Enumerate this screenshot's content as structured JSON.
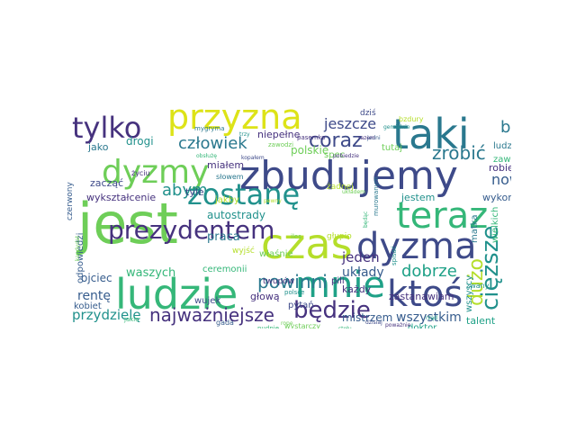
{
  "palette": {
    "dark_purple": "#46327e",
    "indigo": "#3e4a89",
    "blue": "#365c8d",
    "teal": "#2a788e",
    "teal_green": "#21918c",
    "sea_green": "#1fa187",
    "green": "#35b779",
    "light_green": "#6ece58",
    "yellow_green": "#b5de2b",
    "yellow": "#dde318"
  },
  "words": [
    {
      "text": "jest",
      "color": "#6ece58"
    },
    {
      "text": "zbudujemy",
      "color": "#3e4a89"
    },
    {
      "text": "przyzna",
      "color": "#dde318"
    },
    {
      "text": "taki",
      "color": "#2a788e"
    },
    {
      "text": "tylko",
      "color": "#46327e"
    },
    {
      "text": "dyzmy",
      "color": "#6ece58"
    },
    {
      "text": "ludzie",
      "color": "#35b779"
    },
    {
      "text": "teraz",
      "color": "#35b779"
    },
    {
      "text": "czas",
      "color": "#b5de2b"
    },
    {
      "text": "dyzma",
      "color": "#3e4a89"
    },
    {
      "text": "zostanę",
      "color": "#21918c"
    },
    {
      "text": "mnie",
      "color": "#1fa187"
    },
    {
      "text": "ktoś",
      "color": "#3e4a89"
    },
    {
      "text": "prezydentem",
      "color": "#46327e"
    },
    {
      "text": "będzie",
      "color": "#46327e"
    },
    {
      "text": "cięższe",
      "color": "#21918c"
    },
    {
      "text": "coraz",
      "color": "#3e4a89"
    },
    {
      "text": "zrobić",
      "color": "#2a788e"
    },
    {
      "text": "człowiek",
      "color": "#2a788e"
    },
    {
      "text": "było",
      "color": "#2a788e"
    },
    {
      "text": "powinni",
      "color": "#2a788e"
    },
    {
      "text": "dużo",
      "color": "#b5de2b"
    },
    {
      "text": "najważniejsze",
      "color": "#46327e"
    },
    {
      "text": "dobrze",
      "color": "#1fa187"
    },
    {
      "text": "abym",
      "color": "#21918c"
    },
    {
      "text": "jeszcze",
      "color": "#3e4a89"
    },
    {
      "text": "przydzielę",
      "color": "#21918c"
    },
    {
      "text": "nowy",
      "color": "#365c8d"
    },
    {
      "text": "jeden",
      "color": "#46327e"
    },
    {
      "text": "praca",
      "color": "#2a788e"
    },
    {
      "text": "rentę",
      "color": "#365c8d"
    },
    {
      "text": "wszystkim",
      "color": "#365c8d"
    },
    {
      "text": "waszych",
      "color": "#35b779"
    },
    {
      "text": "układy",
      "color": "#365c8d"
    },
    {
      "text": "autostrady",
      "color": "#21918c"
    },
    {
      "text": "drogi",
      "color": "#21918c"
    },
    {
      "text": "wykształcenie",
      "color": "#46327e"
    },
    {
      "text": "mistrzem",
      "color": "#365c8d"
    },
    {
      "text": "polskie",
      "color": "#6ece58"
    },
    {
      "text": "ojciec",
      "color": "#365c8d"
    },
    {
      "text": "głową",
      "color": "#46327e"
    },
    {
      "text": "jestem",
      "color": "#21918c"
    },
    {
      "text": "zastanawiam",
      "color": "#46327e"
    },
    {
      "text": "wykonuję",
      "color": "#365c8d"
    },
    {
      "text": "robię",
      "color": "#46327e"
    },
    {
      "text": "tyle",
      "color": "#3e4a89"
    },
    {
      "text": "jako",
      "color": "#2a788e"
    },
    {
      "text": "zacząć",
      "color": "#3e4a89"
    },
    {
      "text": "niepełne",
      "color": "#46327e"
    },
    {
      "text": "miałem",
      "color": "#46327e"
    },
    {
      "text": "ludzi",
      "color": "#2a788e"
    },
    {
      "text": "każdy",
      "color": "#46327e"
    },
    {
      "text": "talent",
      "color": "#1fa187"
    },
    {
      "text": "doktor",
      "color": "#1fa187"
    },
    {
      "text": "kobiet",
      "color": "#365c8d"
    },
    {
      "text": "pytań",
      "color": "#3e4a89"
    },
    {
      "text": "ceremonii",
      "color": "#35b779"
    },
    {
      "text": "tutaj",
      "color": "#6ece58"
    },
    {
      "text": "zawód",
      "color": "#35b779"
    },
    {
      "text": "spec",
      "color": "#6ece58"
    },
    {
      "text": "dziś",
      "color": "#3e4a89"
    },
    {
      "text": "twupów",
      "color": "#46327e"
    },
    {
      "text": "wszyscy",
      "color": "#21918c"
    },
    {
      "text": "wielkich",
      "color": "#35b779"
    },
    {
      "text": "matka",
      "color": "#2a788e"
    },
    {
      "text": "właśnie",
      "color": "#6ece58"
    },
    {
      "text": "wujek",
      "color": "#3e4a89"
    },
    {
      "text": "jakby",
      "color": "#b5de2b"
    },
    {
      "text": "pili",
      "color": "#46327e"
    },
    {
      "text": "odpowiedzi",
      "color": "#365c8d"
    },
    {
      "text": "czerwony",
      "color": "#365c8d"
    },
    {
      "text": "wyjść",
      "color": "#b5de2b"
    },
    {
      "text": "żadnej",
      "color": "#b5de2b"
    },
    {
      "text": "głupio",
      "color": "#b5de2b"
    },
    {
      "text": "słowem",
      "color": "#2a788e"
    },
    {
      "text": "zawodzi",
      "color": "#6ece58"
    },
    {
      "text": "życiu",
      "color": "#46327e"
    },
    {
      "text": "mygryma",
      "color": "#2a788e"
    },
    {
      "text": "gada",
      "color": "#365c8d"
    },
    {
      "text": "polsce",
      "color": "#21918c"
    },
    {
      "text": "wystarczy",
      "color": "#6ece58"
    },
    {
      "text": "nudnie",
      "color": "#35b779"
    },
    {
      "text": "jakie",
      "color": "#35b779"
    },
    {
      "text": "bzdury",
      "color": "#b5de2b"
    },
    {
      "text": "zwany",
      "color": "#21918c"
    },
    {
      "text": "pasemko",
      "color": "#46327e"
    },
    {
      "text": "gemialnie",
      "color": "#21918c"
    },
    {
      "text": "pobiedzie",
      "color": "#46327e"
    },
    {
      "text": "stołu",
      "color": "#35b779"
    },
    {
      "text": "iles",
      "color": "#6ece58"
    },
    {
      "text": "poważnie",
      "color": "#46327e"
    },
    {
      "text": "murowanym",
      "color": "#2a788e"
    },
    {
      "text": "spisać",
      "color": "#21918c"
    },
    {
      "text": "będąc",
      "color": "#35b779"
    },
    {
      "text": "kopałem",
      "color": "#3e4a89"
    },
    {
      "text": "pewny",
      "color": "#b5de2b"
    },
    {
      "text": "kandydat",
      "color": "#6ece58"
    },
    {
      "text": "jedni",
      "color": "#365c8d"
    },
    {
      "text": "układem",
      "color": "#6ece58"
    },
    {
      "text": "dzisiaj",
      "color": "#3e4a89"
    },
    {
      "text": "obsłużę",
      "color": "#35b779"
    },
    {
      "text": "trzy",
      "color": "#21918c"
    },
    {
      "text": "razem",
      "color": "#46327e"
    },
    {
      "text": "rząd",
      "color": "#1fa187"
    },
    {
      "text": "rope",
      "color": "#6ece58"
    }
  ]
}
